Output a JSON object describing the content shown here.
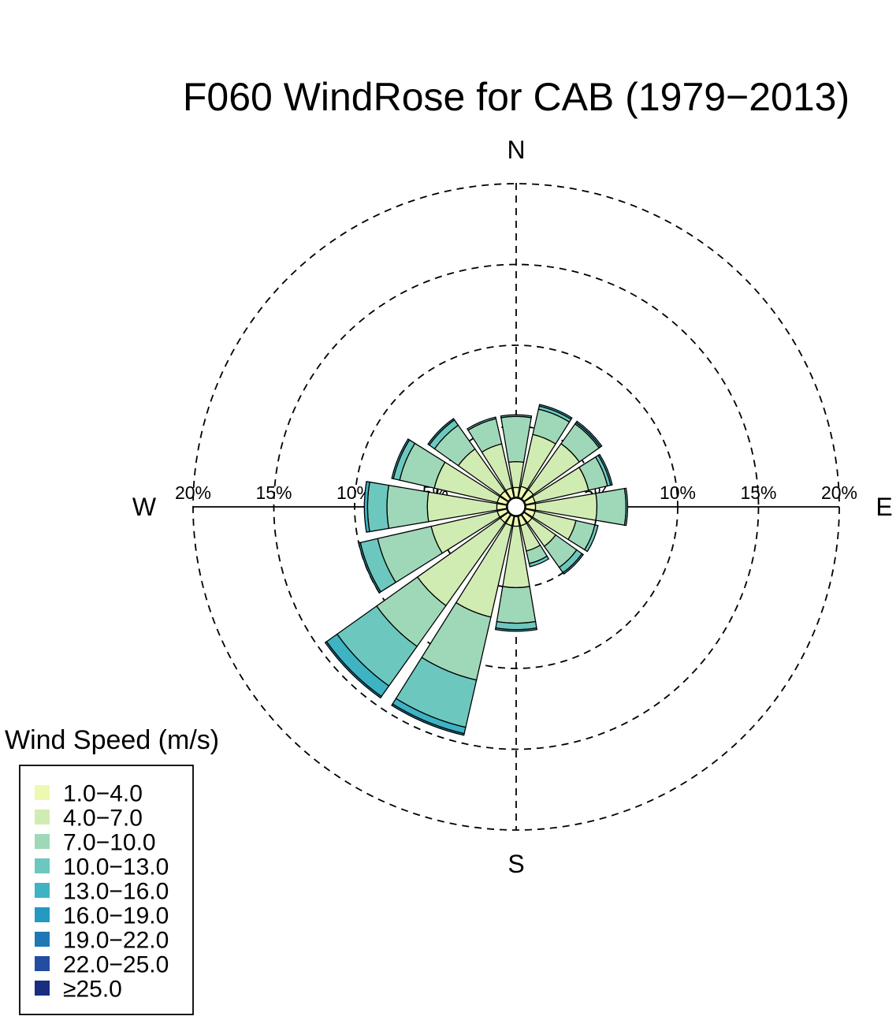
{
  "chart_data": {
    "type": "windrose",
    "title": "F060 WindRose for CAB (1979−2013)",
    "directions": [
      "N",
      "NNE",
      "NE",
      "ENE",
      "E",
      "ESE",
      "SE",
      "SSE",
      "S",
      "SSW",
      "SW",
      "WSW",
      "W",
      "WNW",
      "NW",
      "NNW"
    ],
    "compass_labels": {
      "north": "N",
      "east": "E",
      "south": "S",
      "west": "W"
    },
    "rings": [
      5,
      10,
      15,
      20
    ],
    "ring_labels": [
      "5%",
      "10%",
      "15%",
      "20%"
    ],
    "legend": {
      "title": "Wind Speed (m/s)",
      "placement": "bottom-left",
      "bins": [
        {
          "label": "1.0−4.0",
          "color": "#edf8b1"
        },
        {
          "label": "4.0−7.0",
          "color": "#d1ecb3"
        },
        {
          "label": "7.0−10.0",
          "color": "#9fd8b9"
        },
        {
          "label": "10.0−13.0",
          "color": "#6cc8bf"
        },
        {
          "label": "13.0−16.0",
          "color": "#3eb3c4"
        },
        {
          "label": "16.0−19.0",
          "color": "#2499c1"
        },
        {
          "label": "19.0−22.0",
          "color": "#1f78b4"
        },
        {
          "label": "22.0−25.0",
          "color": "#234da0"
        },
        {
          "label": "≥25.0",
          "color": "#1a2d80"
        }
      ]
    },
    "calm_radius_pct": 0.6,
    "cumulative_pct": [
      [
        0.6,
        1.2,
        2.8,
        5.6,
        5.7
      ],
      [
        0.6,
        1.3,
        4.6,
        6.2,
        6.4,
        6.5
      ],
      [
        0.6,
        1.3,
        4.8,
        6.3,
        6.4,
        6.5
      ],
      [
        0.6,
        1.2,
        4.6,
        5.8,
        6.0,
        6.1
      ],
      [
        0.6,
        1.2,
        5.0,
        6.8,
        6.9
      ],
      [
        0.6,
        1.2,
        3.8,
        5.0,
        5.2
      ],
      [
        0.6,
        1.2,
        3.0,
        4.6,
        5.0,
        5.1
      ],
      [
        0.6,
        1.2,
        2.8,
        3.6,
        3.8
      ],
      [
        0.6,
        1.2,
        5.0,
        7.2,
        7.6,
        7.7
      ],
      [
        0.6,
        1.2,
        7.0,
        11.0,
        14.0,
        14.4,
        14.5
      ],
      [
        0.6,
        1.2,
        7.5,
        10.6,
        13.6,
        14.4,
        14.5
      ],
      [
        0.6,
        1.2,
        5.4,
        8.8,
        9.9,
        10.0
      ],
      [
        0.6,
        1.2,
        5.5,
        8.0,
        9.2,
        9.4
      ],
      [
        0.6,
        1.2,
        5.2,
        7.4,
        7.8,
        7.9
      ],
      [
        0.6,
        1.2,
        4.4,
        6.2,
        6.6,
        6.7
      ],
      [
        0.6,
        1.2,
        4.0,
        5.6,
        5.7
      ]
    ],
    "grid": true
  }
}
